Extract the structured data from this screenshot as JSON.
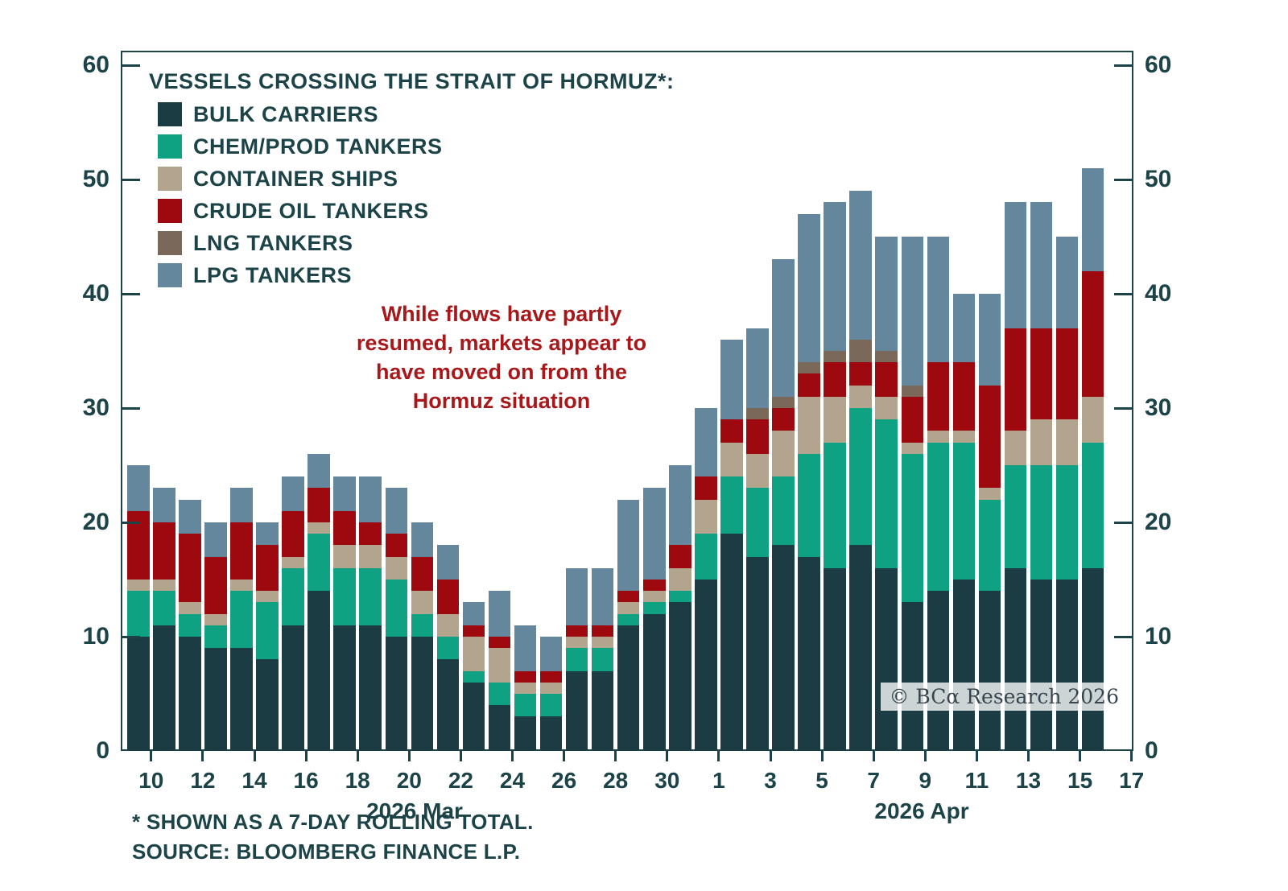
{
  "copyright": "© BCα Research 2026",
  "annotation": {
    "text": "While flows have partly\nresumed, markets appear to\nhave moved on from the\nHormuz situation",
    "color": "#A8181B"
  },
  "footnotes": {
    "line1": "* SHOWN AS A 7-DAY ROLLING TOTAL.",
    "line2": "SOURCE: BLOOMBERG FINANCE L.P."
  },
  "chart_data": {
    "type": "bar",
    "stacked": true,
    "title": "VESSELS CROSSING THE STRAIT OF HORMUZ*:",
    "ylim": [
      0,
      60
    ],
    "yticks": [
      0,
      10,
      20,
      30,
      40,
      50,
      60
    ],
    "grid": false,
    "legend_position": "top-left-inside",
    "x_axis_titles": [
      "2026 Mar",
      "2026 Apr"
    ],
    "dates": [
      "Mar 9",
      "Mar 10",
      "Mar 11",
      "Mar 12",
      "Mar 13",
      "Mar 14",
      "Mar 15",
      "Mar 16",
      "Mar 17",
      "Mar 18",
      "Mar 19",
      "Mar 20",
      "Mar 21",
      "Mar 22",
      "Mar 23",
      "Mar 24",
      "Mar 25",
      "Mar 26",
      "Mar 27",
      "Mar 28",
      "Mar 29",
      "Mar 30",
      "Mar 31",
      "Apr 1",
      "Apr 2",
      "Apr 3",
      "Apr 4",
      "Apr 5",
      "Apr 6",
      "Apr 7",
      "Apr 8",
      "Apr 9",
      "Apr 10",
      "Apr 11",
      "Apr 12",
      "Apr 13",
      "Apr 14",
      "Apr 15"
    ],
    "x_ticks": [
      {
        "label": "10",
        "day": 1
      },
      {
        "label": "12",
        "day": 3
      },
      {
        "label": "14",
        "day": 5
      },
      {
        "label": "16",
        "day": 7
      },
      {
        "label": "18",
        "day": 9
      },
      {
        "label": "20",
        "day": 11
      },
      {
        "label": "22",
        "day": 13
      },
      {
        "label": "24",
        "day": 15
      },
      {
        "label": "26",
        "day": 17
      },
      {
        "label": "28",
        "day": 19
      },
      {
        "label": "30",
        "day": 21
      },
      {
        "label": "1",
        "day": 23
      },
      {
        "label": "3",
        "day": 25
      },
      {
        "label": "5",
        "day": 27
      },
      {
        "label": "7",
        "day": 29
      },
      {
        "label": "9",
        "day": 31
      },
      {
        "label": "11",
        "day": 33
      },
      {
        "label": "13",
        "day": 35
      },
      {
        "label": "15",
        "day": 37
      },
      {
        "label": "17",
        "day": 39
      }
    ],
    "series": [
      {
        "name": "BULK CARRIERS",
        "color": "#1B3C43",
        "values": [
          10,
          11,
          10,
          9,
          9,
          8,
          11,
          14,
          11,
          11,
          10,
          10,
          8,
          6,
          4,
          3,
          3,
          7,
          7,
          11,
          12,
          13,
          15,
          19,
          17,
          18,
          17,
          16,
          18,
          16,
          13,
          14,
          15,
          14,
          16,
          15,
          15,
          16
        ]
      },
      {
        "name": "CHEM/PROD TANKERS",
        "color": "#0EA283",
        "values": [
          4,
          3,
          2,
          2,
          5,
          5,
          5,
          5,
          5,
          5,
          5,
          2,
          2,
          1,
          2,
          2,
          2,
          2,
          2,
          1,
          1,
          1,
          4,
          5,
          6,
          6,
          9,
          11,
          12,
          13,
          13,
          13,
          12,
          8,
          9,
          10,
          10,
          11
        ]
      },
      {
        "name": "CONTAINER SHIPS",
        "color": "#B3A48E",
        "values": [
          1,
          1,
          1,
          1,
          1,
          1,
          1,
          1,
          2,
          2,
          2,
          2,
          2,
          3,
          3,
          1,
          1,
          1,
          1,
          1,
          1,
          2,
          3,
          3,
          3,
          4,
          5,
          4,
          2,
          2,
          1,
          1,
          1,
          1,
          3,
          4,
          4,
          4
        ]
      },
      {
        "name": "CRUDE OIL TANKERS",
        "color": "#9E0910",
        "values": [
          6,
          5,
          6,
          5,
          5,
          4,
          4,
          3,
          3,
          2,
          2,
          3,
          3,
          1,
          1,
          1,
          1,
          1,
          1,
          1,
          1,
          2,
          2,
          2,
          3,
          2,
          2,
          3,
          2,
          3,
          4,
          6,
          6,
          9,
          9,
          8,
          8,
          11
        ]
      },
      {
        "name": "LNG TANKERS",
        "color": "#7A695B",
        "values": [
          0,
          0,
          0,
          0,
          0,
          0,
          0,
          0,
          0,
          0,
          0,
          0,
          0,
          0,
          0,
          0,
          0,
          0,
          0,
          0,
          0,
          0,
          0,
          0,
          1,
          1,
          1,
          1,
          2,
          1,
          1,
          0,
          0,
          0,
          0,
          0,
          0,
          0
        ]
      },
      {
        "name": "LPG TANKERS",
        "color": "#65879E",
        "values": [
          4,
          3,
          3,
          3,
          3,
          2,
          3,
          3,
          3,
          4,
          4,
          3,
          3,
          2,
          4,
          4,
          3,
          5,
          5,
          8,
          8,
          7,
          6,
          7,
          7,
          12,
          13,
          13,
          13,
          10,
          13,
          11,
          6,
          8,
          11,
          11,
          8,
          9
        ]
      }
    ],
    "totals": [
      25,
      23,
      22,
      20,
      23,
      20,
      24,
      26,
      24,
      24,
      23,
      20,
      18,
      13,
      14,
      11,
      10,
      16,
      16,
      22,
      23,
      25,
      30,
      36,
      37,
      43,
      47,
      48,
      49,
      45,
      45,
      45,
      40,
      40,
      48,
      48,
      45,
      51
    ]
  }
}
